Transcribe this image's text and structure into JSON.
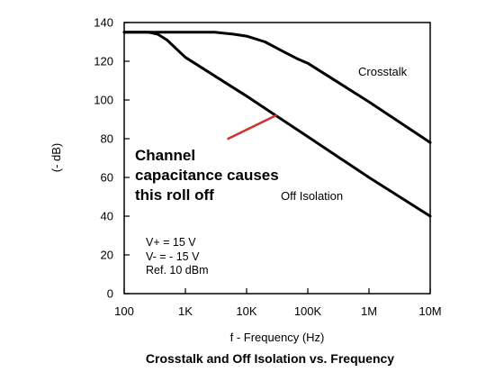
{
  "chart_data": {
    "type": "line",
    "title": "Crosstalk and Off Isolation vs. Frequency",
    "xlabel": "f - Frequency (Hz)",
    "ylabel": "(- dB)",
    "xscale": "log",
    "xlim": [
      100,
      10000000
    ],
    "ylim": [
      0,
      140
    ],
    "grid": false,
    "x_ticks": [
      {
        "value": 100,
        "label": "100"
      },
      {
        "value": 1000,
        "label": "1K"
      },
      {
        "value": 10000,
        "label": "10K"
      },
      {
        "value": 100000,
        "label": "100K"
      },
      {
        "value": 1000000,
        "label": "1M"
      },
      {
        "value": 10000000,
        "label": "10M"
      }
    ],
    "y_ticks": [
      {
        "value": 0,
        "label": "0"
      },
      {
        "value": 20,
        "label": "20"
      },
      {
        "value": 40,
        "label": "40"
      },
      {
        "value": 60,
        "label": "60"
      },
      {
        "value": 80,
        "label": "80"
      },
      {
        "value": 100,
        "label": "100"
      },
      {
        "value": 120,
        "label": "120"
      },
      {
        "value": 140,
        "label": "140"
      }
    ],
    "series": [
      {
        "name": "Crosstalk",
        "color": "#000000",
        "points": [
          [
            100,
            135
          ],
          [
            1000,
            135
          ],
          [
            3000,
            135
          ],
          [
            6000,
            134
          ],
          [
            10000,
            133
          ],
          [
            20000,
            130
          ],
          [
            40000,
            125
          ],
          [
            70000,
            121
          ],
          [
            100000,
            119
          ],
          [
            1000000,
            99
          ],
          [
            10000000,
            78
          ]
        ]
      },
      {
        "name": "Off Isolation",
        "color": "#000000",
        "points": [
          [
            100,
            135
          ],
          [
            250,
            135
          ],
          [
            350,
            134
          ],
          [
            500,
            131
          ],
          [
            1000,
            122
          ],
          [
            10000,
            102
          ],
          [
            100000,
            81
          ],
          [
            1000000,
            60
          ],
          [
            10000000,
            40
          ]
        ]
      }
    ],
    "conditions": [
      "V+ = 15 V",
      "V-  = - 15 V",
      "Ref. 10 dBm"
    ],
    "annotation": {
      "lines": [
        "Channel",
        "capacitance causes",
        "this roll off"
      ],
      "arrow_color": "#d32f2f",
      "from": [
        5000,
        80
      ],
      "to": [
        30000,
        92
      ]
    }
  }
}
